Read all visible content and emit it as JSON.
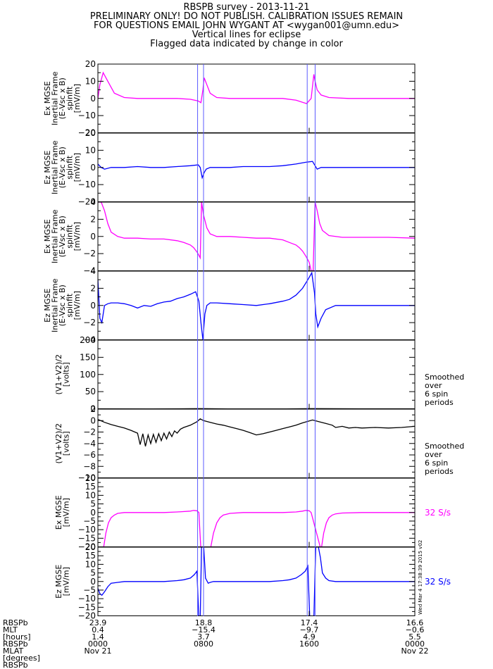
{
  "title_lines": [
    "RBSPB survey - 2013-11-21",
    "PRELIMINARY ONLY! DO NOT PUBLISH. CALIBRATION ISSUES REMAIN",
    "FOR QUESTIONS EMAIL JOHN WYGANT AT <wygan001@umn.edu>",
    "Vertical lines for eclipse",
    "Flagged data indicated by change in color"
  ],
  "chart_data": [
    {
      "type": "line",
      "ylabel_lines": [
        "Ex MGSE",
        "Inertial Frame",
        "(E-Vsc x B)",
        "spinfit",
        "[mV/m]"
      ],
      "ylim": [
        -20,
        20
      ],
      "yticks": [
        -20,
        -10,
        0,
        10,
        20
      ],
      "color": "#ff00ff",
      "right_label": [],
      "series": [
        {
          "x": [
            0,
            0.3,
            0.8,
            1.5,
            2.5,
            4,
            6,
            8,
            10,
            12,
            14,
            15.2,
            15.6,
            15.9,
            16.1,
            16.5,
            17,
            18,
            20,
            22,
            24,
            26,
            28,
            30,
            31.6,
            32.3,
            32.7,
            32.9,
            33.2,
            33.8,
            35,
            38,
            40,
            42,
            44,
            46,
            48
          ],
          "y": [
            0,
            8,
            15,
            10,
            3,
            0.5,
            0,
            0,
            0,
            0,
            -0.5,
            -1.5,
            -2.5,
            5,
            12,
            8,
            3,
            0.5,
            0,
            0,
            0,
            0,
            0,
            -1,
            -3,
            0,
            14,
            10,
            5,
            2,
            0.5,
            0,
            0,
            0,
            0,
            0,
            0
          ]
        }
      ]
    },
    {
      "type": "line",
      "ylabel_lines": [
        "Ez MGSE",
        "Inertial Frame",
        "(E-Vsc x B)",
        "spinfit",
        "[mV/m]"
      ],
      "ylim": [
        -20,
        20
      ],
      "yticks": [
        -20,
        -10,
        0,
        10,
        20
      ],
      "color": "#0000ff",
      "right_label": [],
      "series": [
        {
          "x": [
            0,
            0.5,
            1,
            2,
            4,
            6,
            8,
            10,
            12,
            14,
            15.2,
            15.5,
            15.8,
            16.1,
            16.4,
            17,
            18,
            20,
            22,
            24,
            26,
            28,
            30,
            31.5,
            32.5,
            32.9,
            33.2,
            33.8,
            35,
            38,
            40,
            44,
            48
          ],
          "y": [
            2,
            0,
            -1,
            0,
            0,
            0.5,
            0,
            0,
            0.5,
            1,
            1.5,
            0,
            -6,
            -3,
            -1,
            0,
            0,
            0,
            0.5,
            0.5,
            0.5,
            1,
            2,
            3,
            3.5,
            1,
            -1,
            0,
            0,
            0,
            0,
            0,
            0
          ]
        }
      ]
    },
    {
      "type": "line",
      "ylabel_lines": [
        "Ex MGSE",
        "Inertial Frame",
        "(E-Vsc x B)",
        "spinfit",
        "[mV/m]"
      ],
      "ylim": [
        -4,
        4
      ],
      "yticks": [
        -4,
        -2,
        0,
        2,
        4
      ],
      "color": "#ff00ff",
      "right_label": [],
      "series": [
        {
          "x": [
            0,
            0.5,
            1,
            1.5,
            2,
            3,
            4,
            6,
            8,
            10,
            12,
            13,
            14,
            14.5,
            15,
            15.3,
            15.5,
            15.7,
            16,
            16.5,
            17,
            18,
            20,
            22,
            24,
            26,
            28,
            29,
            30,
            30.5,
            31,
            31.5,
            32,
            32.3,
            32.6,
            32.9,
            33.2,
            33.6,
            34,
            35,
            37,
            40,
            44,
            48
          ],
          "y": [
            4,
            4,
            3,
            1.5,
            0.5,
            0,
            -0.2,
            -0.2,
            -0.3,
            -0.3,
            -0.5,
            -0.7,
            -1,
            -1.3,
            -1.8,
            -2.2,
            -2.5,
            4,
            2.5,
            1,
            0.3,
            0,
            0,
            -0.1,
            -0.2,
            -0.2,
            -0.4,
            -0.7,
            -1,
            -1.3,
            -1.7,
            -2.3,
            -3,
            -4,
            -4,
            4,
            3,
            1.5,
            0.7,
            0.1,
            -0.1,
            -0.1,
            -0.1,
            -0.2
          ]
        }
      ]
    },
    {
      "type": "line",
      "ylabel_lines": [
        "Ez MGSE",
        "Inertial Frame",
        "(E-Vsc x B)",
        "spinfit",
        "[mV/m]"
      ],
      "ylim": [
        -4,
        4
      ],
      "yticks": [
        -4,
        -2,
        0,
        2,
        4
      ],
      "color": "#0000ff",
      "right_label": [],
      "series": [
        {
          "x": [
            0,
            0.3,
            0.6,
            1,
            1.5,
            2,
            3,
            4,
            5,
            6,
            7,
            8,
            9,
            10,
            11,
            12,
            13,
            14,
            14.8,
            15.3,
            15.6,
            15.9,
            16.2,
            16.5,
            17,
            18,
            20,
            22,
            24,
            26,
            28,
            29,
            30,
            31,
            31.8,
            32.4,
            32.8,
            33,
            33.3,
            33.8,
            34.5,
            36,
            40,
            44,
            48
          ],
          "y": [
            3,
            -1.5,
            -2,
            0,
            0.2,
            0.3,
            0.3,
            0.2,
            0,
            -0.3,
            0,
            -0.1,
            0.2,
            0.4,
            0.5,
            0.8,
            1,
            1.3,
            1.6,
            0.5,
            -2,
            -4,
            -1,
            0,
            0.3,
            0.3,
            0.2,
            0.1,
            0,
            0.2,
            0.5,
            0.7,
            1.2,
            2,
            3,
            3.8,
            1.5,
            -1,
            -2.5,
            -1.5,
            -0.5,
            0,
            0,
            0,
            0
          ]
        }
      ]
    },
    {
      "type": "line",
      "ylabel_lines": [
        "(V1+V2)/2",
        "[volts]"
      ],
      "ylim": [
        0,
        200
      ],
      "yticks": [
        0,
        50,
        100,
        150,
        200
      ],
      "color": "#000000",
      "right_label": [
        "Smoothed",
        "over",
        "6 spin",
        "periods"
      ],
      "series": [
        {
          "x": [
            0,
            8,
            15.5,
            24,
            32.5,
            40,
            48
          ],
          "y": [
            0,
            -0.5,
            0.5,
            -1,
            0.5,
            0,
            0
          ]
        }
      ]
    },
    {
      "type": "line",
      "ylabel_lines": [
        "(V1+V2)/2",
        "[volts]"
      ],
      "ylim": [
        -10,
        2
      ],
      "yticks": [
        -10,
        -8,
        -6,
        -4,
        -2,
        0,
        2
      ],
      "color": "#000000",
      "right_label": [
        "Smoothed",
        "over",
        "6 spin",
        "periods"
      ],
      "series": [
        {
          "x": [
            0,
            1,
            2,
            3,
            4,
            5,
            6,
            6.4,
            6.8,
            7.2,
            7.6,
            8,
            8.4,
            8.8,
            9.2,
            9.6,
            10,
            10.4,
            10.8,
            11.2,
            11.6,
            12,
            12.5,
            13,
            14,
            15,
            15.5,
            16,
            17,
            18,
            19,
            20,
            21,
            22,
            23,
            24,
            25,
            26,
            27,
            28,
            29,
            30,
            31,
            32.5,
            33.5,
            34.5,
            35.5,
            36,
            37,
            38,
            39,
            40,
            42,
            44,
            46,
            48
          ],
          "y": [
            0.2,
            -0.3,
            -0.7,
            -1,
            -1.3,
            -1.7,
            -2.2,
            -4.2,
            -2.3,
            -4.5,
            -2.5,
            -4,
            -2.4,
            -3.8,
            -2.3,
            -3.5,
            -2.2,
            -3.2,
            -2,
            -2.8,
            -1.8,
            -2.2,
            -1.5,
            -1.2,
            -0.8,
            -0.2,
            0.3,
            0,
            -0.3,
            -0.6,
            -0.8,
            -1.1,
            -1.4,
            -1.7,
            -2.1,
            -2.5,
            -2.3,
            -2,
            -1.7,
            -1.4,
            -1.1,
            -0.8,
            -0.4,
            0.1,
            -0.2,
            -0.5,
            -0.8,
            -1.2,
            -1,
            -1.3,
            -1.2,
            -1.3,
            -1.2,
            -1.3,
            -1.2,
            -1
          ]
        }
      ]
    },
    {
      "type": "line",
      "ylabel_lines": [
        "Ex MGSE",
        "[mV/m]"
      ],
      "ylim": [
        -20,
        20
      ],
      "yticks": [
        -20,
        -15,
        -10,
        -5,
        0,
        5,
        10,
        15,
        20
      ],
      "color": "#ff00ff",
      "right_label": [
        "32 S/s"
      ],
      "series": [
        {
          "x": [
            0.8,
            1.2,
            1.6,
            2,
            2.5,
            3,
            4,
            6,
            8,
            10,
            12,
            14,
            14.5,
            15,
            15.3,
            15.6,
            17,
            17.5,
            18,
            18.5,
            19,
            20,
            22,
            24,
            26,
            28,
            30,
            31,
            31.5,
            32,
            32.3,
            33.8,
            34.2,
            34.6,
            35,
            35.5,
            36,
            37,
            40,
            44,
            48
          ],
          "y": [
            -22,
            -12,
            -6,
            -3,
            -1.5,
            -0.5,
            0,
            0,
            0,
            0,
            0.3,
            0.8,
            1.2,
            1,
            0,
            -22,
            -22,
            -12,
            -6,
            -3,
            -1.5,
            -0.5,
            0,
            0,
            0,
            0,
            0.3,
            0.8,
            1.2,
            1,
            0,
            -22,
            -12,
            -6,
            -3,
            -1.5,
            -0.8,
            -0.3,
            0,
            0,
            0
          ]
        }
      ]
    },
    {
      "type": "line",
      "ylabel_lines": [
        "Ez MGSE",
        "[mV/m]"
      ],
      "ylim": [
        -20,
        20
      ],
      "yticks": [
        -20,
        -15,
        -10,
        -5,
        0,
        5,
        10,
        15,
        20
      ],
      "color": "#0000ff",
      "right_label": [
        "32 S/s"
      ],
      "series": [
        {
          "x": [
            0,
            0.3,
            0.6,
            1,
            1.5,
            2,
            3,
            4,
            6,
            8,
            10,
            12,
            13,
            14,
            14.6,
            15,
            15.3,
            15.5,
            15.7,
            16,
            16.3,
            16.7,
            17,
            17.5,
            18,
            19,
            20,
            22,
            24,
            26,
            28,
            29,
            30,
            30.8,
            31.4,
            31.8,
            32.1,
            32.4,
            32.7,
            33,
            33.3,
            33.7,
            34,
            34.5,
            35,
            36,
            38,
            40,
            44,
            48
          ],
          "y": [
            -4,
            -7,
            -8,
            -6,
            -3,
            -1,
            -0.5,
            0,
            0,
            0,
            0,
            0.5,
            1,
            2,
            4,
            6,
            -22,
            -22,
            22,
            22,
            2,
            -1,
            -0.5,
            0,
            0,
            0,
            0,
            0,
            0,
            0,
            0.5,
            1,
            2,
            4,
            6,
            9,
            -22,
            -22,
            -22,
            22,
            22,
            14,
            5,
            2,
            0.5,
            0,
            0,
            0,
            0,
            0
          ]
        }
      ]
    }
  ],
  "eclipse_lines": [
    15.1,
    16.0,
    31.7,
    32.9
  ],
  "x_axis": {
    "xlim": [
      0,
      48
    ],
    "major_ticks": [
      0,
      16,
      32,
      48
    ],
    "row_labels": [
      "RBSPb",
      "MLT",
      "[hours]",
      "RBSPb",
      "MLAT",
      "[degrees]",
      "RBSPb"
    ],
    "columns": [
      {
        "x": 0,
        "values": [
          "23.9",
          "0.4",
          "1.4",
          "0000",
          "Nov 21"
        ]
      },
      {
        "x": 16,
        "values": [
          "18.8",
          "-15.4",
          "3.7",
          "0800",
          ""
        ]
      },
      {
        "x": 32,
        "values": [
          "17.4",
          "-9.7",
          "4.9",
          "1600",
          ""
        ]
      },
      {
        "x": 48,
        "values": [
          "16.6",
          "-0.6",
          "5.5",
          "0000",
          "Nov 22"
        ]
      }
    ]
  },
  "timestamp": "Wed Mar  4 17:38:39 2015 v02"
}
